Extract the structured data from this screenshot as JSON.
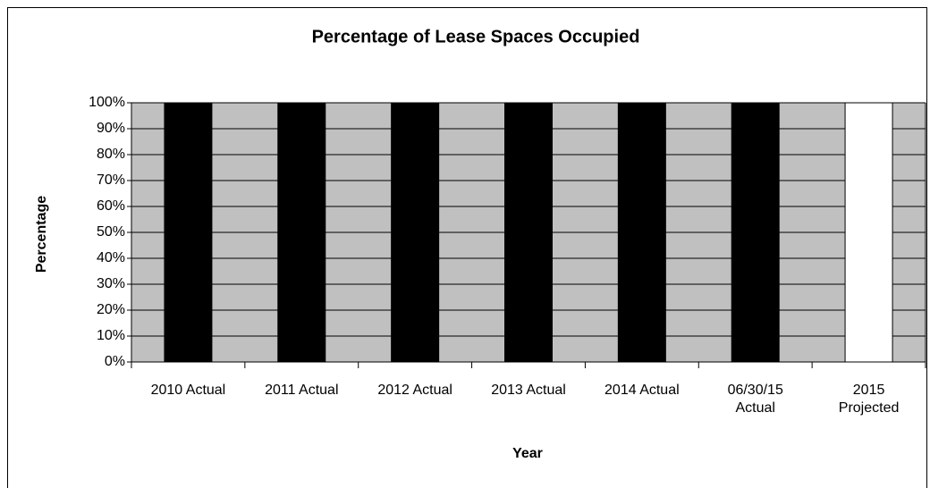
{
  "chart_data": {
    "type": "bar",
    "title": "Percentage of Lease Spaces Occupied",
    "x_label": "Year",
    "y_label": "Percentage",
    "categories": [
      "2010 Actual",
      "2011 Actual",
      "2012 Actual",
      "2013 Actual",
      "2014 Actual",
      "06/30/15 Actual",
      "2015 Projected"
    ],
    "values": [
      100,
      100,
      100,
      100,
      100,
      100,
      100
    ],
    "colors": [
      "#000000",
      "#000000",
      "#000000",
      "#000000",
      "#000000",
      "#000000",
      "#ffffff"
    ],
    "plot_background": "#c0c0c0",
    "ylim": [
      0,
      100
    ],
    "yticks": [
      {
        "value": 0,
        "label": "0%"
      },
      {
        "value": 10,
        "label": "10%"
      },
      {
        "value": 20,
        "label": "20%"
      },
      {
        "value": 30,
        "label": "30%"
      },
      {
        "value": 40,
        "label": "40%"
      },
      {
        "value": 50,
        "label": "50%"
      },
      {
        "value": 60,
        "label": "60%"
      },
      {
        "value": 70,
        "label": "70%"
      },
      {
        "value": 80,
        "label": "80%"
      },
      {
        "value": 90,
        "label": "90%"
      },
      {
        "value": 100,
        "label": "100%"
      }
    ],
    "grid": true
  }
}
